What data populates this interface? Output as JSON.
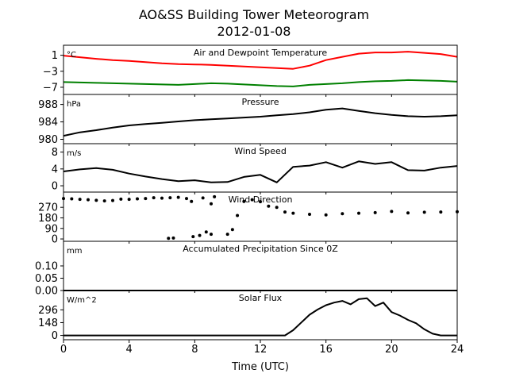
{
  "figure": {
    "title": "AO&SS Building Tower Meteorogram",
    "subtitle": "2012-01-08",
    "xlabel": "Time (UTC)"
  },
  "chart_data": [
    {
      "type": "line",
      "title": "Air and Dewpoint Temperature",
      "unit": "°C",
      "xlim": [
        0,
        24
      ],
      "ylim": [
        -8.8,
        3.5
      ],
      "yticks": [
        1,
        -3,
        -7
      ],
      "ytick_labels": [
        "1",
        "−3",
        "−7"
      ],
      "series": [
        {
          "color": "#ff0000",
          "x": [
            0,
            1,
            2,
            3,
            4,
            5,
            6,
            7,
            8,
            9,
            10,
            11,
            12,
            13,
            14,
            15,
            16,
            17,
            18,
            19,
            20,
            21,
            22,
            23,
            24
          ],
          "y": [
            0.9,
            0.5,
            0.1,
            -0.2,
            -0.4,
            -0.7,
            -1.0,
            -1.2,
            -1.3,
            -1.4,
            -1.6,
            -1.8,
            -2.0,
            -2.2,
            -2.4,
            -1.6,
            -0.2,
            0.6,
            1.4,
            1.7,
            1.7,
            1.9,
            1.6,
            1.3,
            0.6
          ]
        },
        {
          "color": "#008000",
          "x": [
            0,
            1,
            2,
            3,
            4,
            5,
            6,
            7,
            8,
            9,
            10,
            11,
            12,
            13,
            14,
            15,
            16,
            17,
            18,
            19,
            20,
            21,
            22,
            23,
            24
          ],
          "y": [
            -5.7,
            -5.8,
            -5.9,
            -6.0,
            -6.1,
            -6.2,
            -6.3,
            -6.4,
            -6.2,
            -6.0,
            -6.1,
            -6.3,
            -6.5,
            -6.7,
            -6.8,
            -6.4,
            -6.2,
            -6.0,
            -5.7,
            -5.5,
            -5.4,
            -5.2,
            -5.3,
            -5.4,
            -5.6
          ]
        }
      ]
    },
    {
      "type": "line",
      "title": "Pressure",
      "unit": "hPa",
      "xlim": [
        0,
        24
      ],
      "ylim": [
        979,
        990.3
      ],
      "yticks": [
        980,
        984,
        988
      ],
      "ytick_labels": [
        "980",
        "984",
        "988"
      ],
      "series": [
        {
          "color": "#000000",
          "x": [
            0,
            1,
            2,
            3,
            4,
            5,
            6,
            7,
            8,
            9,
            10,
            11,
            12,
            13,
            14,
            15,
            16,
            17,
            18,
            19,
            20,
            21,
            22,
            23,
            24
          ],
          "y": [
            980.8,
            981.6,
            982.1,
            982.7,
            983.2,
            983.5,
            983.8,
            984.1,
            984.4,
            984.6,
            984.8,
            985.0,
            985.2,
            985.5,
            985.8,
            986.2,
            986.8,
            987.1,
            986.5,
            986.0,
            985.6,
            985.3,
            985.2,
            985.3,
            985.5
          ]
        }
      ]
    },
    {
      "type": "line",
      "title": "Wind Speed",
      "unit": "m/s",
      "xlim": [
        0,
        24
      ],
      "ylim": [
        -1.5,
        10
      ],
      "yticks": [
        0,
        4,
        8
      ],
      "ytick_labels": [
        "0",
        "4",
        "8"
      ],
      "series": [
        {
          "color": "#000000",
          "x": [
            0,
            1,
            2,
            3,
            4,
            5,
            6,
            7,
            8,
            9,
            10,
            11,
            12,
            13,
            14,
            15,
            16,
            17,
            18,
            19,
            20,
            21,
            22,
            23,
            24
          ],
          "y": [
            3.4,
            3.9,
            4.2,
            3.8,
            2.9,
            2.2,
            1.6,
            1.1,
            1.3,
            0.8,
            0.9,
            2.1,
            2.6,
            0.8,
            4.5,
            4.8,
            5.6,
            4.3,
            5.8,
            5.2,
            5.6,
            3.7,
            3.6,
            4.3,
            4.7
          ]
        }
      ]
    },
    {
      "type": "scatter",
      "title": "Wind Direction",
      "xlim": [
        0,
        24
      ],
      "ylim": [
        -20,
        400
      ],
      "yticks": [
        0,
        90,
        180,
        270
      ],
      "ytick_labels": [
        "0",
        "90",
        "180",
        "270"
      ],
      "series": [
        {
          "color": "#000000",
          "x": [
            0,
            0.5,
            1,
            1.5,
            2,
            2.5,
            3,
            3.5,
            4,
            4.5,
            5,
            5.5,
            6,
            6.5,
            7,
            7.5,
            7.8,
            8.5,
            9,
            9.2,
            10,
            10.3,
            10.6,
            11,
            11.5,
            12,
            12.5,
            13,
            13.5,
            14,
            15,
            16,
            17,
            18,
            19,
            20,
            21,
            22,
            23,
            24
          ],
          "y": [
            345,
            342,
            338,
            335,
            330,
            325,
            328,
            340,
            338,
            342,
            345,
            352,
            348,
            352,
            355,
            345,
            320,
            350,
            300,
            360,
            40,
            80,
            200,
            320,
            335,
            318,
            280,
            270,
            230,
            220,
            210,
            205,
            215,
            220,
            225,
            235,
            222,
            228,
            230,
            232
          ]
        },
        {
          "color": "#000000",
          "x": [
            6.4,
            6.7,
            7.9,
            8.3,
            8.7,
            9.0
          ],
          "y": [
            5,
            8,
            20,
            30,
            60,
            40
          ]
        }
      ]
    },
    {
      "type": "line",
      "title": "Accumulated Precipitation Since 0Z",
      "unit": "mm",
      "xlim": [
        0,
        24
      ],
      "ylim": [
        0,
        0.2
      ],
      "yticks": [
        0,
        0.05,
        0.1
      ],
      "ytick_labels": [
        "0.00",
        "0.05",
        "0.10"
      ],
      "series": [
        {
          "color": "#000000",
          "x": [
            0,
            24
          ],
          "y": [
            0,
            0
          ]
        }
      ]
    },
    {
      "type": "line",
      "title": "Solar Flux",
      "unit": "W/m^2",
      "xlim": [
        0,
        24
      ],
      "ylim": [
        -50,
        520
      ],
      "yticks": [
        0,
        148,
        296
      ],
      "ytick_labels": [
        "0",
        "148",
        "296"
      ],
      "series": [
        {
          "color": "#000000",
          "x": [
            0,
            13.5,
            14,
            14.5,
            15,
            15.5,
            16,
            16.5,
            17,
            17.5,
            18,
            18.5,
            19,
            19.5,
            20,
            20.5,
            21,
            21.5,
            22,
            22.5,
            23,
            24
          ],
          "y": [
            0,
            0,
            60,
            150,
            240,
            300,
            350,
            380,
            400,
            360,
            420,
            430,
            340,
            380,
            270,
            230,
            180,
            140,
            70,
            20,
            0,
            0
          ]
        }
      ]
    }
  ],
  "xticks": [
    0,
    4,
    8,
    12,
    16,
    20,
    24
  ],
  "xtick_labels": [
    "0",
    "4",
    "8",
    "12",
    "16",
    "20",
    "24"
  ]
}
